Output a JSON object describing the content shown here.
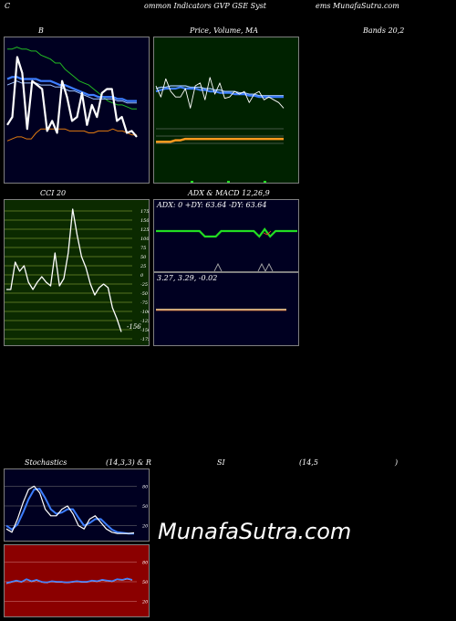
{
  "header": {
    "left": "C",
    "center": "ommon Indicators GVP GSE Syst",
    "right": "ems MunafaSutra.com"
  },
  "panels": {
    "bands": {
      "label_left": "B",
      "label_mid": "Price, Volume, MA",
      "label_right": "Bands 20,2"
    },
    "cci": {
      "label": "CCI 20",
      "value": "-156"
    },
    "adx_macd": {
      "label": "ADX  & MACD 12,26,9",
      "adx_line": "ADX: 0  +DY: 63.64  -DY: 63.64",
      "macd_line": "3.27,  3.29,  -0.02"
    },
    "stoch": {
      "label_a": "Stochastics",
      "label_b": "(14,3,3) & R",
      "label_c": "SI",
      "label_d": "(14,5",
      "label_e": ")"
    }
  },
  "watermark": "MunafaSutra.com",
  "colors": {
    "navy": "#000021",
    "green_bg": "#002200",
    "rsi_bg": "#8b0000",
    "blue": "#3d7eff",
    "orange": "#ff9a1f",
    "lime": "#22dd22"
  },
  "chart_data": [
    {
      "type": "line",
      "name": "bollinger-bands",
      "series": [
        {
          "name": "upper",
          "values": [
            96,
            96,
            97,
            96,
            96,
            95,
            95,
            93,
            92,
            91,
            89,
            89,
            86,
            84,
            82,
            80,
            79,
            78,
            76,
            74,
            72,
            70,
            69,
            68,
            68,
            67,
            66,
            66
          ]
        },
        {
          "name": "mid-a",
          "values": [
            81,
            82,
            82,
            81,
            81,
            81,
            81,
            80,
            80,
            80,
            79,
            78,
            78,
            77,
            76,
            75,
            74,
            73,
            73,
            72,
            72,
            72,
            72,
            71,
            71,
            70,
            70,
            70
          ]
        },
        {
          "name": "mid-b",
          "values": [
            78,
            79,
            80,
            79,
            79,
            79,
            79,
            78,
            78,
            78,
            77,
            77,
            76,
            75,
            75,
            74,
            73,
            72,
            71,
            71,
            71,
            71,
            71,
            70,
            70,
            69,
            69,
            69
          ]
        },
        {
          "name": "lower",
          "values": [
            50,
            51,
            52,
            52,
            51,
            51,
            54,
            56,
            56,
            56,
            56,
            56,
            56,
            55,
            55,
            55,
            55,
            54,
            54,
            55,
            55,
            55,
            56,
            55,
            55,
            54,
            53,
            53
          ]
        },
        {
          "name": "price",
          "values": [
            58,
            62,
            92,
            84,
            56,
            80,
            78,
            76,
            55,
            60,
            54,
            80,
            72,
            60,
            62,
            74,
            58,
            68,
            62,
            74,
            76,
            76,
            60,
            62,
            54,
            55,
            52
          ]
        }
      ],
      "ylim": [
        30,
        100
      ]
    },
    {
      "type": "line",
      "name": "price-volume-ma",
      "series": [
        {
          "name": "ma-upper",
          "values": [
            66,
            67,
            67,
            68,
            68,
            68,
            68,
            67,
            67,
            67,
            66,
            66,
            65,
            65,
            64,
            64,
            64,
            63,
            63,
            62,
            62,
            61,
            61,
            61,
            61,
            61,
            61
          ]
        },
        {
          "name": "ma-lower",
          "values": [
            64,
            65,
            66,
            66,
            66,
            67,
            66,
            66,
            66,
            65,
            65,
            64,
            64,
            63,
            63,
            63,
            62,
            62,
            62,
            61,
            61,
            60,
            60,
            60,
            60,
            60,
            60
          ]
        },
        {
          "name": "price",
          "values": [
            68,
            60,
            73,
            64,
            60,
            60,
            66,
            52,
            68,
            70,
            58,
            74,
            62,
            70,
            59,
            60,
            64,
            62,
            64,
            56,
            62,
            64,
            58,
            60,
            58,
            56,
            52
          ]
        },
        {
          "name": "volume-ma",
          "values": [
            28,
            28,
            28,
            28,
            29,
            29,
            30,
            30,
            30,
            30,
            30,
            30,
            30,
            30,
            30,
            30,
            30,
            30,
            30,
            30,
            30,
            30,
            30,
            30,
            30,
            30,
            30
          ]
        }
      ],
      "ylim": [
        0,
        100
      ]
    },
    {
      "type": "line",
      "name": "cci",
      "series": [
        {
          "name": "cci",
          "values": [
            -40,
            -40,
            35,
            10,
            25,
            -20,
            -40,
            -20,
            -5,
            -20,
            -30,
            60,
            -30,
            -10,
            60,
            180,
            110,
            50,
            20,
            -25,
            -55,
            -35,
            -25,
            -35,
            -90,
            -120,
            -156
          ]
        }
      ],
      "ylim": [
        -175,
        175
      ],
      "ticks": [
        175,
        150,
        125,
        100,
        75,
        50,
        25,
        0,
        -25,
        -50,
        -75,
        -100,
        -125,
        -150,
        -175
      ]
    },
    {
      "type": "line",
      "name": "adx-macd",
      "series": [
        {
          "name": "adx",
          "values": [
            0,
            0,
            0,
            0,
            0,
            0,
            0,
            0,
            0,
            0,
            0,
            0,
            0,
            0,
            0,
            0,
            0,
            0,
            0,
            0,
            0,
            0,
            0,
            0,
            0,
            0,
            0
          ]
        },
        {
          "name": "+dy",
          "values": [
            63.64,
            63.64,
            63.64,
            63.64,
            63.64,
            63.64,
            63.64,
            63.64,
            63.64,
            63.64,
            63.64,
            63.64,
            63.64,
            63.64,
            63.64,
            63.64,
            63.64,
            63.64,
            63.64,
            63.64,
            63.64,
            63.64,
            63.64,
            63.64,
            63.64,
            63.64,
            63.64
          ]
        },
        {
          "name": "-dy",
          "values": [
            63.64,
            63.64,
            63.64,
            63.64,
            63.64,
            63.64,
            63.64,
            63.64,
            63.64,
            63.64,
            63.64,
            63.64,
            63.64,
            63.64,
            63.64,
            63.64,
            63.64,
            63.64,
            63.64,
            63.64,
            63.64,
            63.64,
            63.64,
            63.64,
            63.64,
            63.64,
            63.64
          ]
        },
        {
          "name": "macd",
          "values": [
            3.27
          ]
        },
        {
          "name": "signal",
          "values": [
            3.29
          ]
        },
        {
          "name": "histogram",
          "values": [
            -0.02
          ]
        }
      ]
    },
    {
      "type": "line",
      "name": "stochastics",
      "series": [
        {
          "name": "%K",
          "values": [
            15,
            10,
            30,
            55,
            75,
            80,
            70,
            45,
            35,
            35,
            45,
            50,
            38,
            20,
            15,
            30,
            35,
            25,
            15,
            10,
            8,
            8,
            8,
            9
          ]
        },
        {
          "name": "%D",
          "values": [
            20,
            14,
            22,
            40,
            60,
            75,
            76,
            62,
            45,
            38,
            40,
            45,
            45,
            32,
            20,
            24,
            30,
            30,
            22,
            14,
            10,
            9,
            8,
            8
          ]
        }
      ],
      "ylim": [
        0,
        100
      ],
      "ticks": [
        80,
        50,
        20
      ]
    },
    {
      "type": "line",
      "name": "rsi",
      "series": [
        {
          "name": "rsi",
          "values": [
            48,
            50,
            52,
            50,
            54,
            51,
            53,
            50,
            49,
            51,
            50,
            50,
            49,
            50,
            51,
            50,
            50,
            52,
            51,
            53,
            52,
            51,
            54,
            53,
            55,
            53
          ]
        }
      ],
      "ylim": [
        0,
        100
      ],
      "ticks": [
        80,
        50,
        20
      ]
    }
  ]
}
